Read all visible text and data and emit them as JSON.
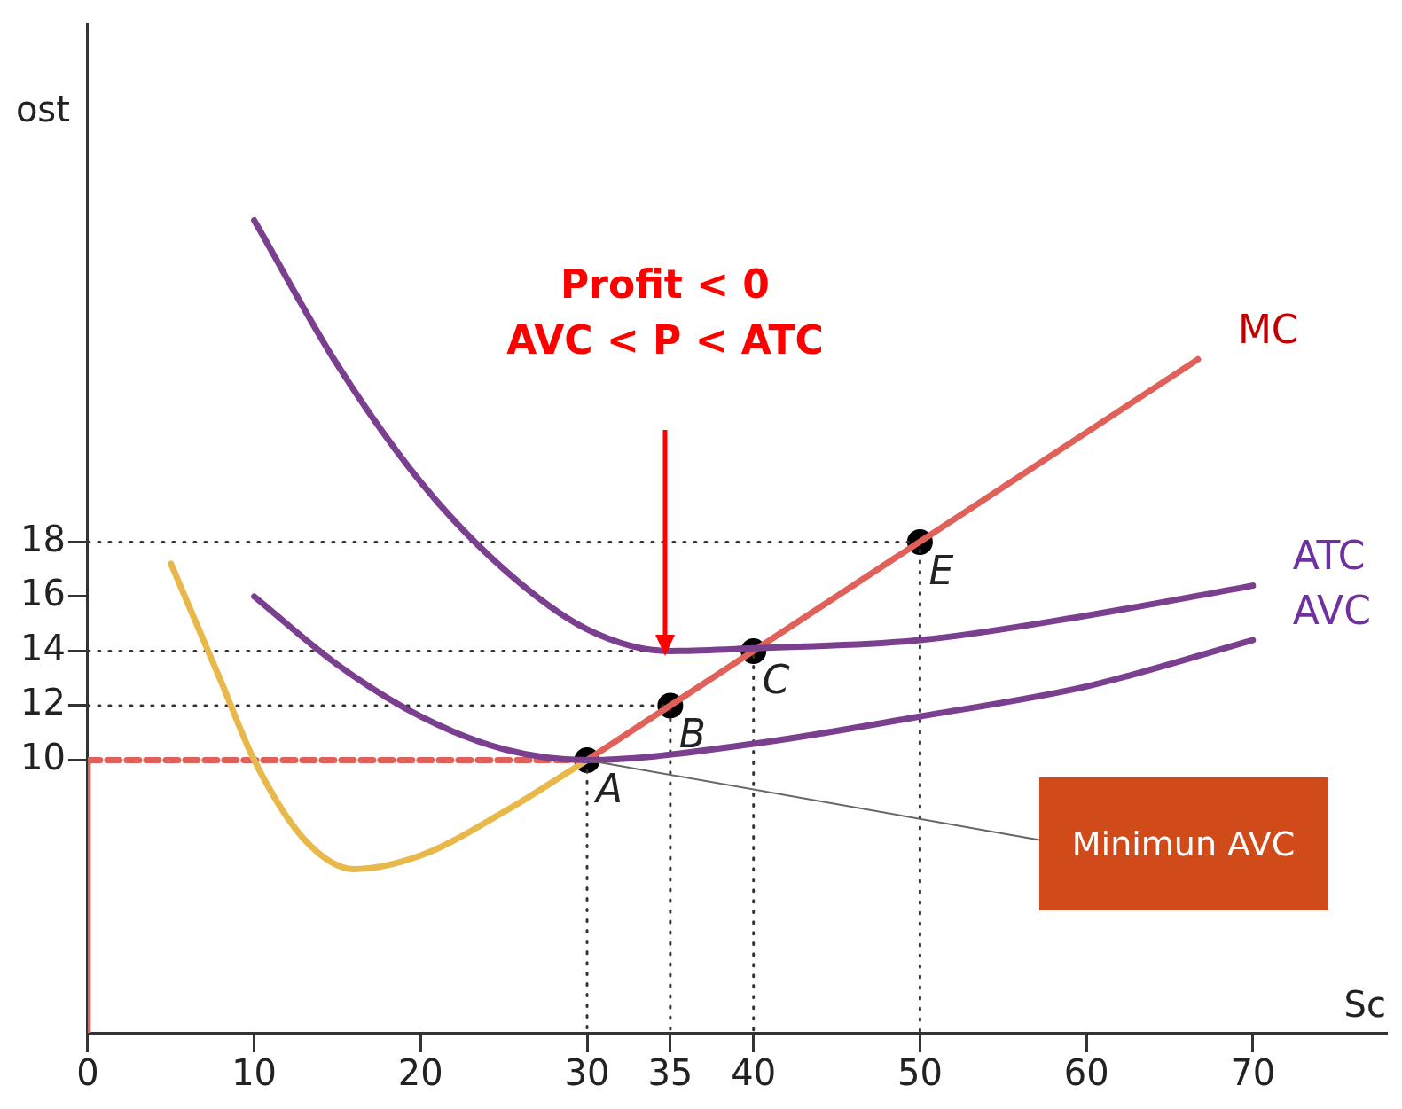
{
  "chart_data": {
    "type": "line",
    "ylabel": "ost",
    "xlabel": "Sc",
    "xlim": [
      0,
      78
    ],
    "xticks": [
      0,
      10,
      20,
      30,
      35,
      40,
      50,
      60,
      70
    ],
    "ylim": [
      0,
      37
    ],
    "yticks": [
      10,
      12,
      14,
      16,
      18
    ],
    "grid": false,
    "legend": false,
    "marker": "none",
    "series": [
      {
        "name": "ATC",
        "color": "#7a3f8f",
        "x": [
          10,
          15,
          20,
          25,
          30,
          35,
          40,
          50,
          60,
          70
        ],
        "values": [
          29.8,
          24.5,
          20.2,
          17,
          14.8,
          14,
          14.1,
          14.4,
          15.3,
          16.4
        ]
      },
      {
        "name": "AVC",
        "color": "#7a3f8f",
        "x": [
          10,
          15,
          20,
          25,
          30,
          40,
          50,
          60,
          70
        ],
        "values": [
          16,
          13.5,
          11.6,
          10.4,
          10,
          10.6,
          11.6,
          12.7,
          14.4
        ]
      },
      {
        "color": "#e8b84a",
        "x": [
          5,
          8,
          10,
          13,
          16,
          20,
          25,
          30
        ],
        "values": [
          17.2,
          12.9,
          10,
          7.1,
          6,
          6.5,
          8.1,
          10
        ]
      },
      {
        "name": "MC",
        "color": "#e0605a",
        "x": [
          30,
          66.7
        ],
        "values": [
          10,
          24.7
        ]
      },
      {
        "color": "#e0605a",
        "x": [
          0,
          0
        ],
        "values": [
          0,
          10
        ]
      },
      {
        "color": "#e0605a",
        "x": [
          0,
          30
        ],
        "values": [
          10,
          10
        ],
        "line_style": "dashed"
      },
      {
        "color": "#333333",
        "x": [
          30,
          30
        ],
        "values": [
          10,
          0
        ],
        "line_style": "dotted"
      },
      {
        "color": "#333333",
        "x": [
          0,
          35,
          35
        ],
        "values": [
          12,
          12,
          0
        ],
        "line_style": "dotted"
      },
      {
        "color": "#333333",
        "x": [
          0,
          40,
          40
        ],
        "values": [
          14,
          14,
          0
        ],
        "line_style": "dotted"
      },
      {
        "color": "#333333",
        "x": [
          0,
          50,
          50
        ],
        "values": [
          18,
          18,
          0
        ],
        "line_style": "dotted"
      },
      {
        "type": "scatter",
        "marker": "circle",
        "color": "#000000",
        "x": [
          30,
          35,
          40,
          50
        ],
        "values": [
          10,
          12,
          14,
          18
        ]
      }
    ],
    "annotations": [
      "Profit < 0",
      "AVC < P < ATC",
      {
        "text": "Minimun AVC",
        "x": 30,
        "y": 10
      },
      {
        "text": "A",
        "x": 30,
        "y": 10
      },
      {
        "text": "B",
        "x": 35,
        "y": 12
      },
      {
        "text": "C",
        "x": 40,
        "y": 14
      },
      {
        "text": "E",
        "x": 50,
        "y": 18
      }
    ]
  }
}
